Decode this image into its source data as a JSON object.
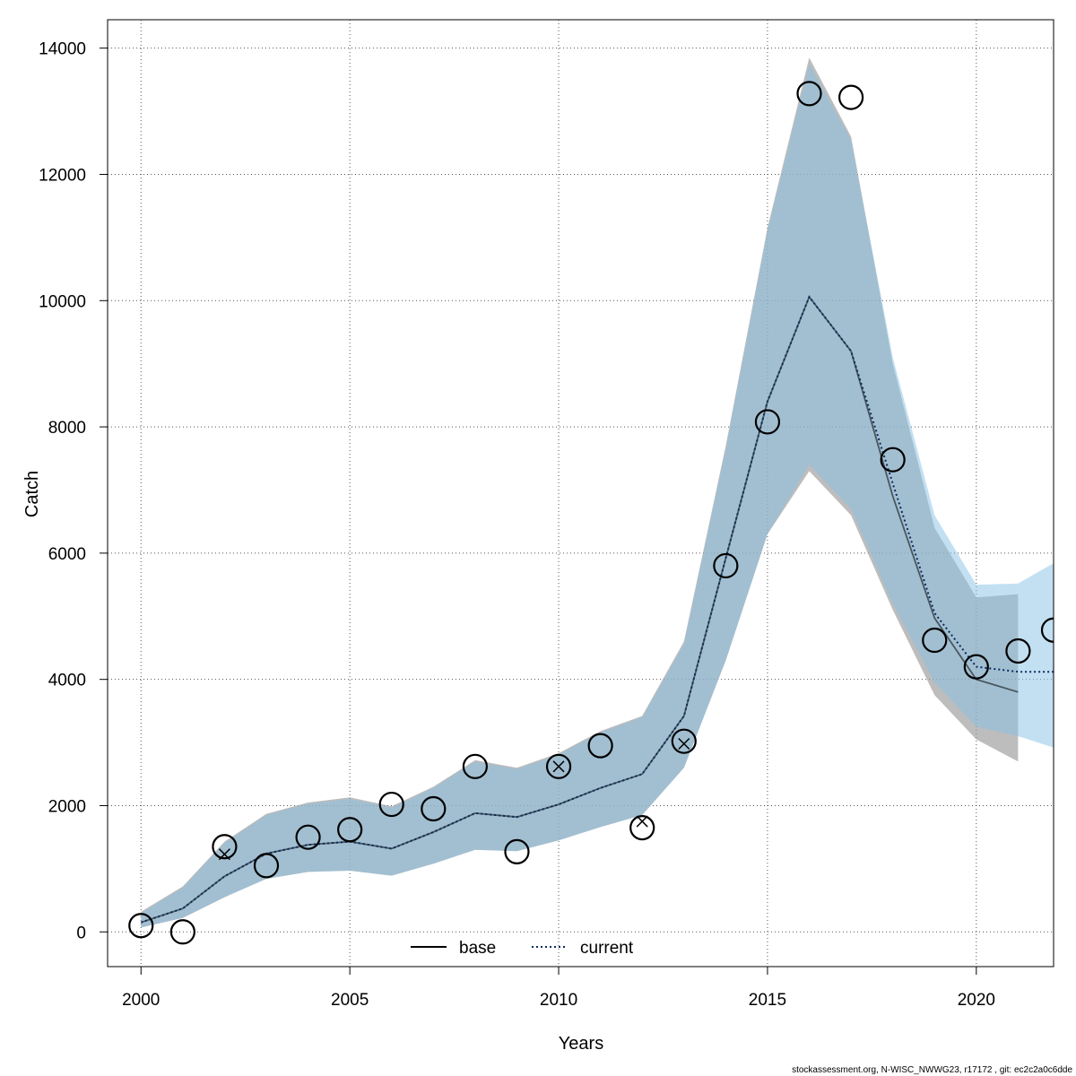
{
  "chart_data": {
    "type": "line",
    "title": "",
    "xlabel": "Years",
    "ylabel": "Catch",
    "xlim": [
      1999.2,
      2021.85
    ],
    "ylim": [
      -550,
      14450
    ],
    "grid": true,
    "legend_position": "bottom-center",
    "x_ticks": [
      2000,
      2005,
      2010,
      2015,
      2020
    ],
    "y_ticks": [
      0,
      2000,
      4000,
      6000,
      8000,
      10000,
      12000,
      14000
    ],
    "colors": {
      "base_band": "#999999",
      "current_band": "#87c1e6",
      "base_line": "#000000",
      "current_line": "#0a2a5e",
      "points": "#000000",
      "grid": "#555555"
    },
    "series": [
      {
        "name": "base",
        "line_style": "solid",
        "x": [
          2000,
          2001,
          2002,
          2003,
          2004,
          2005,
          2006,
          2007,
          2008,
          2009,
          2010,
          2011,
          2012,
          2013,
          2014,
          2015,
          2016,
          2017,
          2018,
          2019,
          2020,
          2021
        ],
        "values": [
          150,
          370,
          880,
          1240,
          1380,
          1430,
          1320,
          1580,
          1880,
          1820,
          2020,
          2280,
          2500,
          3420,
          5920,
          8400,
          10060,
          9200,
          6900,
          4970,
          4000,
          3800
        ],
        "lower": [
          70,
          220,
          550,
          840,
          950,
          970,
          890,
          1080,
          1300,
          1280,
          1450,
          1660,
          1850,
          2600,
          4300,
          6300,
          7300,
          6600,
          5100,
          3750,
          3050,
          2700
        ],
        "upper": [
          320,
          720,
          1430,
          1870,
          2050,
          2130,
          1990,
          2300,
          2720,
          2600,
          2830,
          3180,
          3420,
          4600,
          7700,
          11150,
          13850,
          12600,
          9000,
          6400,
          5300,
          5350
        ]
      },
      {
        "name": "current",
        "line_style": "dotted",
        "x": [
          2000,
          2001,
          2002,
          2003,
          2004,
          2005,
          2006,
          2007,
          2008,
          2009,
          2010,
          2011,
          2012,
          2013,
          2014,
          2015,
          2016,
          2017,
          2018,
          2019,
          2020,
          2021,
          2021.85
        ],
        "values": [
          150,
          370,
          880,
          1240,
          1380,
          1430,
          1320,
          1580,
          1880,
          1820,
          2020,
          2280,
          2500,
          3420,
          5920,
          8400,
          10060,
          9200,
          7100,
          5050,
          4200,
          4120,
          4120
        ],
        "lower": [
          70,
          220,
          550,
          840,
          950,
          970,
          890,
          1080,
          1300,
          1280,
          1450,
          1660,
          1850,
          2600,
          4300,
          6300,
          7400,
          6700,
          5200,
          3950,
          3250,
          3100,
          2920
        ],
        "upper": [
          300,
          700,
          1410,
          1850,
          2030,
          2110,
          1970,
          2280,
          2700,
          2580,
          2810,
          3160,
          3400,
          4560,
          7650,
          11100,
          13750,
          12550,
          9100,
          6600,
          5500,
          5520,
          5840
        ]
      }
    ],
    "observations": {
      "x": [
        2000,
        2001,
        2002,
        2003,
        2004,
        2005,
        2006,
        2007,
        2008,
        2009,
        2010,
        2011,
        2012,
        2013,
        2014,
        2015,
        2016,
        2017,
        2018,
        2019,
        2020,
        2021,
        2021.85
      ],
      "values": [
        100,
        0,
        1350,
        1050,
        1500,
        1620,
        2020,
        1950,
        2620,
        1270,
        2620,
        2950,
        1650,
        3020,
        5800,
        8080,
        13280,
        13220,
        7480,
        4620,
        4200,
        4450,
        4780
      ]
    },
    "cross_markers": {
      "x": [
        2002,
        2010,
        2012,
        2013
      ],
      "values": [
        1230,
        2620,
        1750,
        2980
      ]
    }
  },
  "footer": "stockassessment.org, N-WISC_NWWG23, r17172 , git: ec2c2a0c6dde"
}
